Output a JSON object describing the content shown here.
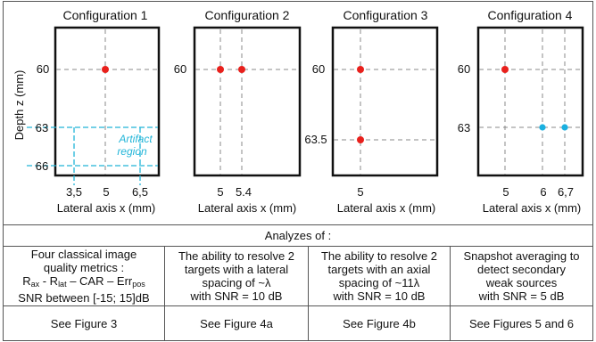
{
  "configs": [
    {
      "title": "Configuration 1",
      "depth_ticks": [
        "60",
        "63",
        "66"
      ],
      "lateral_ticks": [
        "3,5",
        "5",
        "6,5"
      ],
      "region_label_1": "Artifact",
      "region_label_2": "region"
    },
    {
      "title": "Configuration 2",
      "depth_ticks": [
        "60"
      ],
      "lateral_ticks": [
        "5",
        "5.4"
      ]
    },
    {
      "title": "Configuration 3",
      "depth_ticks": [
        "60",
        "63.5"
      ],
      "lateral_ticks": [
        "5"
      ]
    },
    {
      "title": "Configuration 4",
      "depth_ticks": [
        "60",
        "63"
      ],
      "lateral_ticks": [
        "5",
        "6",
        "6,7"
      ]
    }
  ],
  "axis": {
    "ylabel": "Depth z (mm)",
    "xlabel": "Lateral axis x (mm)"
  },
  "table": {
    "header": "Analyzes of :",
    "col1": {
      "line1": "Four classical image",
      "line2": "quality metrics :",
      "metric_r": "R",
      "sub_ax": "ax",
      "metric_sep1": " - R",
      "sub_lat": "lat",
      "metric_rest": " – CAR – Err",
      "sub_pos": "pos",
      "snr": "SNR between [-15; 15]dB",
      "fig": "See Figure 3"
    },
    "col2": {
      "line1": "The ability to resolve 2",
      "line2": "targets with a lateral",
      "line3": "spacing of ~λ",
      "line4": "with SNR = 10 dB",
      "fig": "See Figure 4a"
    },
    "col3": {
      "line1": "The ability to resolve 2",
      "line2": "targets with an axial",
      "line3": "spacing of ~11λ",
      "line4": "with SNR = 10 dB",
      "fig": "See Figure 4b"
    },
    "col4": {
      "line1": "Snapshot averaging to",
      "line2": "detect secondary",
      "line3": "weak sources",
      "line4": "with SNR = 5 dB",
      "fig": "See Figures 5 and 6"
    }
  },
  "colors": {
    "target_red": "#e8201c",
    "weak_source_blue": "#1ab0e0",
    "artifact_cyan": "#22b5d8",
    "grid_dash": "#888888",
    "frame": "#111111"
  }
}
